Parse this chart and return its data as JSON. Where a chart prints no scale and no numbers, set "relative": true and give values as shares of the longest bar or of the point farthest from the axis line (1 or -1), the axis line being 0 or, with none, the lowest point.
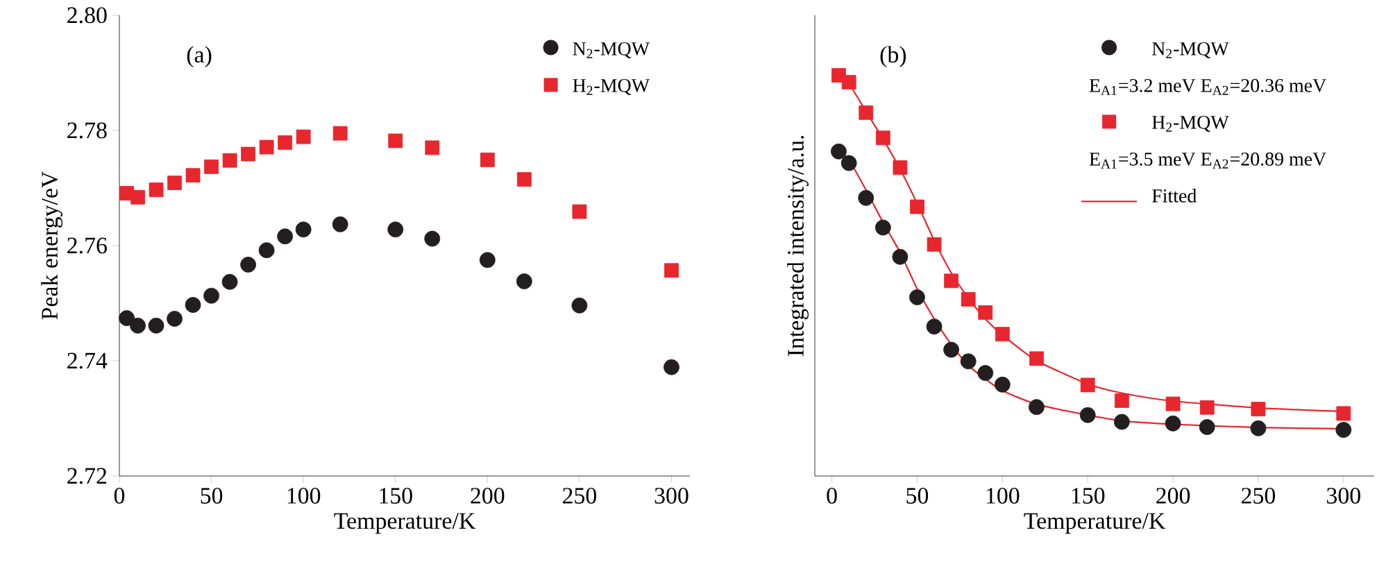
{
  "chart_data": [
    {
      "type": "scatter",
      "title": "(a)",
      "xlabel": "Temperature/K",
      "ylabel": "Peak energy/eV",
      "xlim": [
        0,
        310
      ],
      "xticks": [
        0,
        50,
        100,
        150,
        200,
        250,
        300
      ],
      "ylim": [
        2.72,
        2.8
      ],
      "yticks": [
        2.72,
        2.74,
        2.76,
        2.78,
        {
          "value": 2.8,
          "label": "2.80"
        }
      ],
      "legend": "top right",
      "x": [
        4,
        10,
        20,
        30,
        40,
        50,
        60,
        70,
        80,
        90,
        100,
        120,
        150,
        170,
        200,
        220,
        250,
        300
      ],
      "series": [
        {
          "name": "N$_{2}$-MQW",
          "color": "#231f20",
          "marker": "circle",
          "values": [
            2.7474,
            2.7461,
            2.7461,
            2.7473,
            2.7497,
            2.7513,
            2.7537,
            2.7567,
            2.7592,
            2.7616,
            2.7628,
            2.7637,
            2.7628,
            2.7612,
            2.7575,
            2.7538,
            2.7496,
            2.7389
          ]
        },
        {
          "name": "H$_{2}$-MQW",
          "color": "#e8262d",
          "marker": "square",
          "values": [
            2.7691,
            2.7684,
            2.7697,
            2.7709,
            2.7722,
            2.7737,
            2.7748,
            2.7759,
            2.7771,
            2.7779,
            2.7789,
            2.7795,
            2.7782,
            2.777,
            2.7749,
            2.7715,
            2.7659,
            2.7557
          ]
        }
      ]
    },
    {
      "type": "scatter",
      "title": "(b)",
      "xlabel": "Temperature/K",
      "ylabel": "Integrated intensity/a.u.",
      "relative": true,
      "tick_labels": "x",
      "xlim": [
        -10,
        318
      ],
      "xticks": [
        0,
        50,
        100,
        150,
        200,
        250,
        300
      ],
      "legend": "top right",
      "annotations": [
        "E$_{A1}$=3.2 meV  E$_{A2}$=20.36 meV",
        "E$_{A1}$=3.5 meV  E$_{A2}$=20.89 meV"
      ],
      "x": [
        4,
        10,
        20,
        30,
        40,
        50,
        60,
        70,
        80,
        90,
        100,
        120,
        150,
        170,
        200,
        220,
        250,
        300
      ],
      "series": [
        {
          "name": "N$_{2}$-MQW",
          "color": "#231f20",
          "marker": "circle",
          "values": [
            0.81,
            0.781,
            0.694,
            0.62,
            0.547,
            0.446,
            0.373,
            0.315,
            0.286,
            0.257,
            0.228,
            0.172,
            0.152,
            0.135,
            0.131,
            0.122,
            0.119,
            0.115
          ]
        },
        {
          "name": "H$_{2}$-MQW",
          "color": "#e8262d",
          "marker": "square",
          "values": [
            1.0,
            0.983,
            0.907,
            0.844,
            0.77,
            0.672,
            0.578,
            0.487,
            0.441,
            0.408,
            0.354,
            0.293,
            0.227,
            0.188,
            0.18,
            0.171,
            0.167,
            0.156
          ]
        },
        {
          "name": "Fitted",
          "type": "line",
          "color": "#e8262d",
          "x": [
            5,
            10,
            20,
            30,
            40,
            50,
            60,
            70,
            80,
            90,
            100,
            120,
            150,
            170,
            200,
            250,
            300
          ],
          "values": [
            0.81,
            0.789,
            0.714,
            0.633,
            0.558,
            0.467,
            0.392,
            0.328,
            0.276,
            0.242,
            0.213,
            0.179,
            0.152,
            0.138,
            0.129,
            0.121,
            0.118
          ]
        },
        {
          "type": "line",
          "color": "#e8262d",
          "x": [
            5,
            10,
            20,
            30,
            40,
            50,
            60,
            70,
            80,
            90,
            100,
            120,
            150,
            170,
            200,
            250,
            300
          ],
          "values": [
            0.998,
            0.979,
            0.91,
            0.841,
            0.766,
            0.68,
            0.588,
            0.507,
            0.444,
            0.392,
            0.352,
            0.288,
            0.23,
            0.207,
            0.187,
            0.17,
            0.161
          ]
        }
      ]
    }
  ]
}
